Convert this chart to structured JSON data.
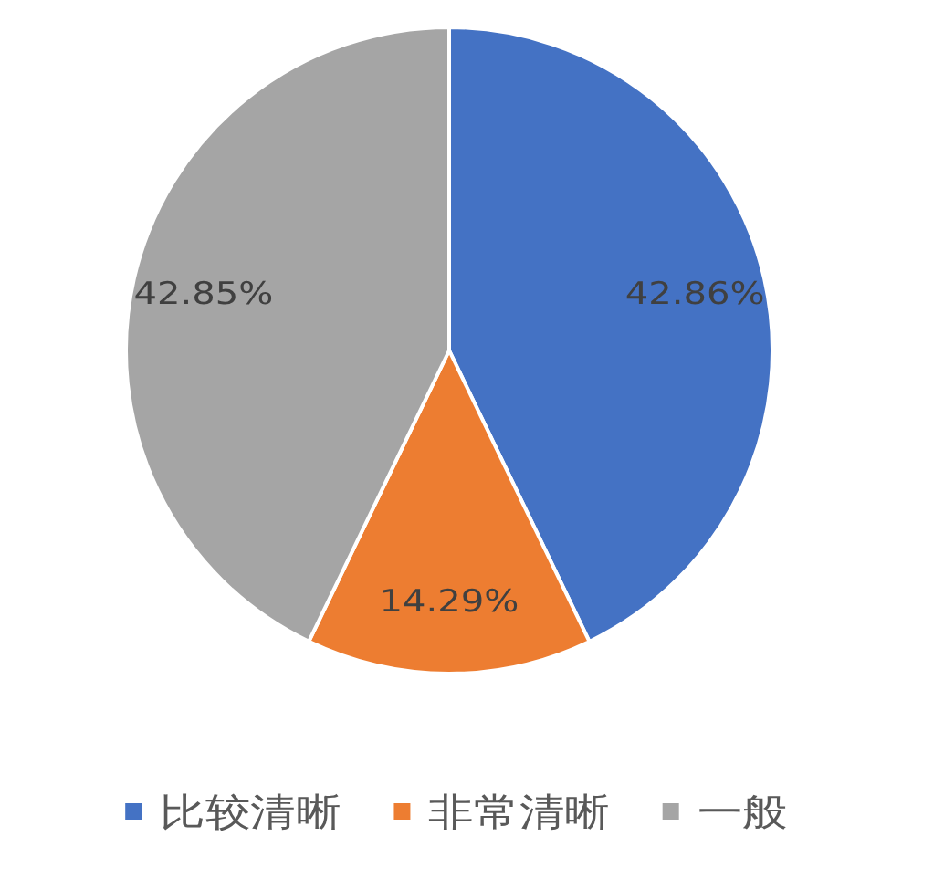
{
  "chart_data": {
    "type": "pie",
    "categories": [
      "比较清晰",
      "非常清晰",
      "一般"
    ],
    "values": [
      42.86,
      14.29,
      42.85
    ],
    "colors": [
      "#4472c4",
      "#ed7d31",
      "#a5a5a5"
    ],
    "value_labels": [
      "42.86%",
      "14.29%",
      "42.85%"
    ],
    "legend": "bottom"
  }
}
